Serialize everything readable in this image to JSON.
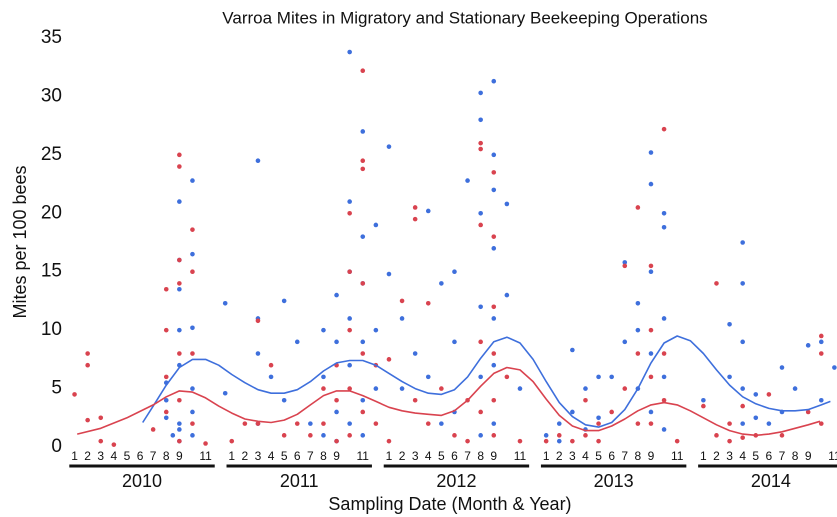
{
  "chart_data": {
    "type": "scatter",
    "title": "Varroa Mites in Migratory and Stationary Beekeeping Operations",
    "x_label": "Sampling Date (Month & Year)",
    "y_label": "Mites per 100 bees",
    "x_groups": [
      "2010",
      "2011",
      "2012",
      "2013",
      "2014"
    ],
    "xlim": [
      0.5,
      59.2
    ],
    "ylim": [
      0,
      35
    ],
    "yticks": [
      0,
      5,
      10,
      15,
      20,
      25,
      30,
      35
    ],
    "xticks": [
      1,
      2,
      3,
      4,
      5,
      6,
      7,
      8,
      9,
      11,
      {
        "value": 13,
        "label": "1"
      },
      {
        "value": 14,
        "label": "2"
      },
      {
        "value": 15,
        "label": "3"
      },
      {
        "value": 16,
        "label": "4"
      },
      {
        "value": 17,
        "label": "5"
      },
      {
        "value": 18,
        "label": "6"
      },
      {
        "value": 19,
        "label": "7"
      },
      {
        "value": 20,
        "label": "8"
      },
      {
        "value": 21,
        "label": "9"
      },
      {
        "value": 23,
        "label": "11"
      },
      {
        "value": 25,
        "label": "1"
      },
      {
        "value": 26,
        "label": "2"
      },
      {
        "value": 27,
        "label": "3"
      },
      {
        "value": 28,
        "label": "4"
      },
      {
        "value": 29,
        "label": "5"
      },
      {
        "value": 30,
        "label": "6"
      },
      {
        "value": 31,
        "label": "7"
      },
      {
        "value": 32,
        "label": "8"
      },
      {
        "value": 33,
        "label": "9"
      },
      {
        "value": 35,
        "label": "11"
      },
      {
        "value": 37,
        "label": "1"
      },
      {
        "value": 38,
        "label": "2"
      },
      {
        "value": 39,
        "label": "3"
      },
      {
        "value": 40,
        "label": "4"
      },
      {
        "value": 41,
        "label": "5"
      },
      {
        "value": 42,
        "label": "6"
      },
      {
        "value": 43,
        "label": "7"
      },
      {
        "value": 44,
        "label": "8"
      },
      {
        "value": 45,
        "label": "9"
      },
      {
        "value": 47,
        "label": "11"
      },
      {
        "value": 49,
        "label": "1"
      },
      {
        "value": 50,
        "label": "2"
      },
      {
        "value": 51,
        "label": "3"
      },
      {
        "value": 52,
        "label": "4"
      },
      {
        "value": 53,
        "label": "5"
      },
      {
        "value": 54,
        "label": "6"
      },
      {
        "value": 55,
        "label": "7"
      },
      {
        "value": 56,
        "label": "8"
      },
      {
        "value": 57,
        "label": "9"
      },
      {
        "value": 59,
        "label": "11"
      }
    ],
    "series": [
      {
        "color": "#3e6fdc",
        "x": [
          8,
          8,
          8,
          8.5,
          9,
          9,
          9,
          9,
          9,
          9,
          9,
          9,
          10,
          10,
          10,
          10,
          10,
          10,
          12.5,
          12.5,
          15,
          15,
          15,
          15,
          16,
          17,
          17,
          18,
          19,
          20,
          20,
          20,
          21,
          21,
          21,
          21,
          22,
          22,
          22,
          22,
          22,
          22,
          23,
          23,
          23,
          23,
          23,
          23,
          24,
          24,
          24,
          25,
          25,
          26,
          26,
          27,
          28,
          28,
          29,
          29,
          30,
          30,
          30,
          31,
          32,
          32,
          32,
          32,
          32,
          32,
          33,
          33,
          33,
          33,
          33,
          33,
          33,
          34,
          34,
          35,
          37,
          38,
          38,
          39,
          39,
          40,
          40,
          41,
          41,
          42,
          43,
          43,
          44,
          44,
          44,
          45,
          45,
          45,
          45,
          45,
          46,
          46,
          46,
          46,
          46,
          49,
          51,
          51,
          52,
          52,
          52,
          52,
          52,
          53,
          53,
          54,
          55,
          55,
          56,
          57,
          58,
          58,
          59
        ],
        "values": [
          2.5,
          4,
          5.5,
          1,
          0.5,
          2,
          7,
          10,
          13.5,
          16,
          21,
          1.5,
          22.8,
          10.2,
          5,
          3,
          1,
          16.5,
          12.3,
          4.6,
          24.5,
          11,
          8,
          2,
          6,
          12.5,
          4,
          9,
          2,
          10,
          6,
          1,
          13,
          9,
          3,
          0.5,
          33.8,
          21,
          15,
          11,
          7,
          2,
          27,
          18,
          14,
          9,
          4,
          1,
          19,
          10,
          5,
          25.7,
          14.8,
          11,
          5,
          8,
          20.2,
          6,
          2,
          14,
          15,
          9,
          3,
          22.8,
          30.3,
          28,
          20,
          12,
          6,
          1,
          31.3,
          25,
          22,
          17,
          11,
          7,
          2,
          20.8,
          13,
          5,
          1,
          2,
          0.5,
          3,
          8.3,
          5,
          1.5,
          6,
          2.5,
          6,
          15.8,
          9,
          10,
          5,
          12.3,
          25.2,
          22.5,
          15,
          8,
          3,
          20,
          18.8,
          11,
          6,
          1.5,
          4,
          10.5,
          6,
          17.5,
          14,
          9,
          5,
          2,
          4.5,
          2.5,
          2,
          6.8,
          3,
          5,
          8.7,
          9,
          4,
          6.8
        ]
      },
      {
        "color": "#d9434f",
        "x": [
          1,
          2,
          2,
          2,
          3,
          3,
          4,
          7,
          8,
          8,
          8,
          8,
          9,
          9,
          9,
          9,
          9,
          9,
          9,
          10,
          10,
          10,
          10,
          11,
          13,
          14,
          15,
          15,
          16,
          17,
          18,
          19,
          20,
          20,
          21,
          21,
          21,
          22,
          22,
          22,
          22,
          22,
          23,
          23,
          23,
          23,
          23,
          23,
          24,
          24,
          25,
          25,
          26,
          27,
          27,
          27,
          28,
          28,
          29,
          30,
          31,
          31,
          32,
          32,
          32,
          32,
          32,
          33,
          33,
          33,
          33,
          33,
          33,
          34,
          35,
          37,
          38,
          39,
          40,
          40,
          41,
          41,
          42,
          43,
          43,
          44,
          44,
          44,
          45,
          45,
          45,
          45,
          46,
          46,
          46,
          47,
          49,
          50,
          50,
          51,
          51,
          52,
          52,
          53,
          54,
          55,
          57,
          58,
          58,
          58
        ],
        "values": [
          4.5,
          8,
          7,
          2.3,
          2.5,
          0.5,
          0.2,
          1.5,
          13.5,
          10,
          6,
          3,
          25,
          24,
          16,
          14,
          8,
          4,
          0.5,
          18.6,
          15,
          8,
          2,
          0.3,
          0.5,
          2,
          2,
          10.8,
          7,
          1,
          2,
          1,
          5,
          2,
          7,
          4,
          0.5,
          20,
          15,
          10,
          5,
          1,
          32.2,
          24.5,
          23.8,
          14,
          8,
          3,
          7,
          2,
          7.5,
          0.5,
          12.5,
          20.5,
          19.5,
          4,
          2,
          12.3,
          5,
          1,
          4,
          0.5,
          26,
          25.5,
          19,
          9,
          3,
          23.5,
          18,
          12,
          8,
          4,
          1,
          6,
          0.5,
          0.5,
          1,
          0.5,
          4,
          1,
          2,
          0.5,
          3,
          15.5,
          5,
          20.5,
          8,
          2,
          15.5,
          10,
          6,
          2,
          27.2,
          8,
          4,
          0.5,
          3.5,
          14,
          1,
          2,
          0.5,
          0.8,
          3.5,
          1,
          4.5,
          1,
          3,
          9.5,
          8,
          2
        ]
      }
    ],
    "trend_lines": [
      {
        "color": "#3e6fdc",
        "x": [
          6.2,
          7,
          8,
          9,
          10,
          11,
          12,
          13,
          14,
          15,
          16,
          17,
          18,
          19,
          20,
          21,
          22,
          23,
          24,
          25,
          26,
          27,
          28,
          29,
          30,
          31,
          32,
          33,
          34,
          35,
          36,
          37,
          38,
          39,
          40,
          41,
          42,
          43,
          44,
          45,
          46,
          47,
          48,
          49,
          50,
          51,
          52,
          53,
          54,
          55,
          56,
          57,
          58,
          58.7
        ],
        "values": [
          2.1,
          3.5,
          5.3,
          6.8,
          7.5,
          7.5,
          7.0,
          6.2,
          5.5,
          4.9,
          4.6,
          4.6,
          4.9,
          5.6,
          6.5,
          7.2,
          7.4,
          7.4,
          7.0,
          6.3,
          5.6,
          5.0,
          4.6,
          4.5,
          4.9,
          6.0,
          7.6,
          9.0,
          9.4,
          8.9,
          7.5,
          5.6,
          3.8,
          2.6,
          1.9,
          1.7,
          2.1,
          3.2,
          5.0,
          7.2,
          8.9,
          9.5,
          9.1,
          8.0,
          6.6,
          5.3,
          4.3,
          3.7,
          3.3,
          3.1,
          3.1,
          3.2,
          3.6,
          3.9
        ]
      },
      {
        "color": "#d9434f",
        "x": [
          1.2,
          3,
          5,
          7,
          8,
          9,
          10,
          11,
          12,
          13,
          14,
          15,
          16,
          17,
          18,
          19,
          20,
          21,
          22,
          23,
          24,
          25,
          26,
          27,
          28,
          29,
          30,
          31,
          32,
          33,
          34,
          35,
          36,
          37,
          38,
          39,
          40,
          41,
          42,
          43,
          44,
          45,
          46,
          47,
          48,
          49,
          50,
          51,
          52,
          53,
          54,
          55,
          56,
          57,
          57.9
        ],
        "values": [
          1.1,
          1.6,
          2.5,
          3.6,
          4.3,
          4.8,
          4.7,
          4.2,
          3.5,
          2.9,
          2.4,
          2.2,
          2.1,
          2.3,
          2.8,
          3.6,
          4.4,
          4.8,
          4.8,
          4.4,
          3.9,
          3.4,
          3.1,
          2.9,
          2.8,
          2.7,
          3.1,
          4.0,
          5.2,
          6.3,
          6.8,
          6.6,
          5.6,
          4.1,
          2.7,
          1.8,
          1.4,
          1.4,
          1.8,
          2.4,
          3.1,
          3.6,
          3.8,
          3.6,
          3.1,
          2.5,
          1.9,
          1.4,
          1.1,
          1.0,
          1.1,
          1.3,
          1.6,
          1.9,
          2.2
        ]
      }
    ]
  }
}
